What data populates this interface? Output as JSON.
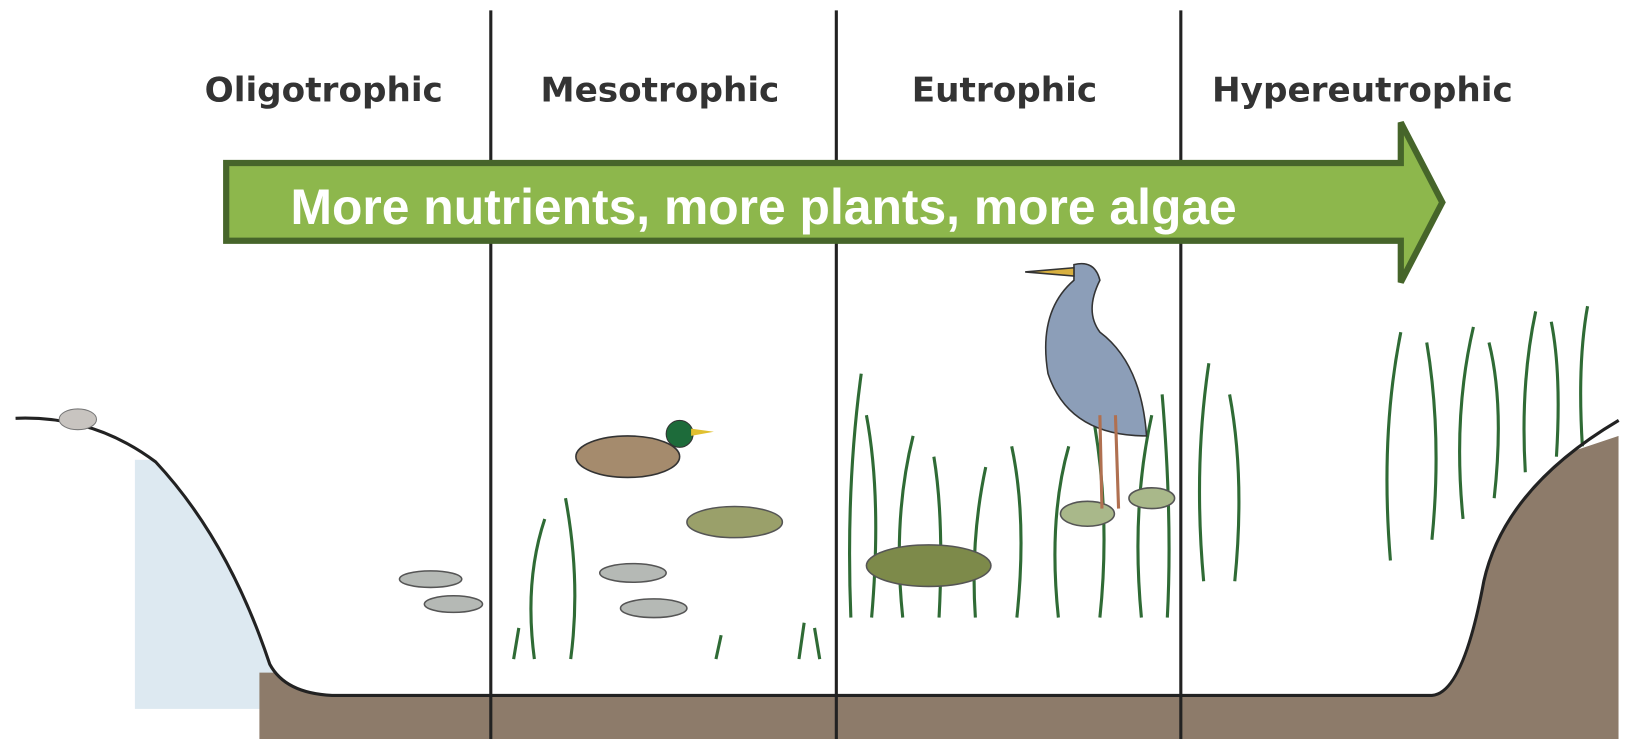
{
  "stages": [
    "Oligotrophic",
    "Mesotrophic",
    "Eutrophic",
    "Hypereutrophic"
  ],
  "arrow_text": "More nutrients, more plants, more algae"
}
